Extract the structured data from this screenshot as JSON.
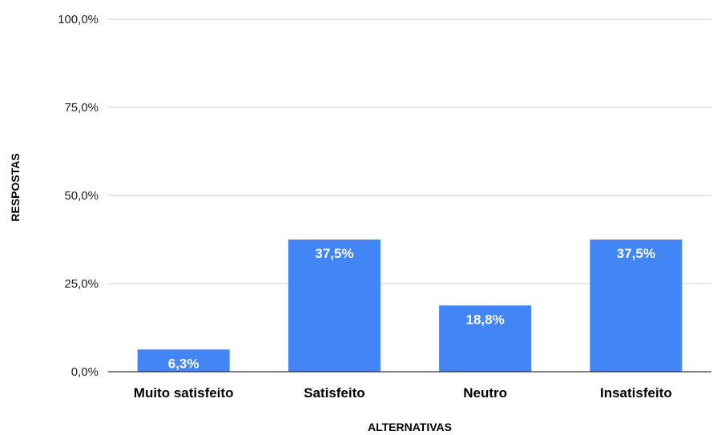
{
  "chart_data": {
    "type": "bar",
    "title": "",
    "xlabel": "ALTERNATIVAS",
    "ylabel": "RESPOSTAS",
    "categories": [
      "Muito satisfeito",
      "Satisfeito",
      "Neutro",
      "Insatisfeito"
    ],
    "values": [
      6.3,
      37.5,
      18.8,
      37.5
    ],
    "data_labels": [
      "6,3%",
      "37,5%",
      "18,8%",
      "37,5%"
    ],
    "ylim": [
      0,
      100
    ],
    "y_ticks": [
      0,
      25,
      50,
      75,
      100
    ],
    "y_tick_labels": [
      "0,0%",
      "25,0%",
      "50,0%",
      "75,0%",
      "100,0%"
    ],
    "grid": true,
    "legend": "none",
    "colors": {
      "bar": "#4285f4",
      "grid": "#cccccc",
      "axis": "#333333"
    }
  }
}
